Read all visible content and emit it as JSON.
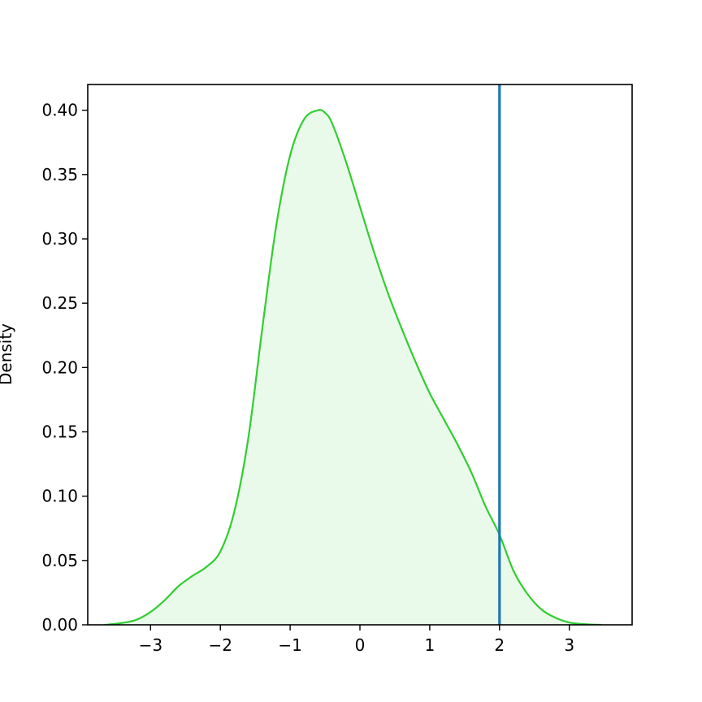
{
  "chart_data": {
    "type": "area",
    "title": "",
    "xlabel": "",
    "ylabel": "Density",
    "xlim": [
      -3.9,
      3.9
    ],
    "ylim": [
      0.0,
      0.42
    ],
    "x_ticks": [
      -3,
      -2,
      -1,
      0,
      1,
      2,
      3
    ],
    "x_tick_labels": [
      "−3",
      "−2",
      "−1",
      "0",
      "1",
      "2",
      "3"
    ],
    "y_ticks": [
      0.0,
      0.05,
      0.1,
      0.15,
      0.2,
      0.25,
      0.3,
      0.35,
      0.4
    ],
    "y_tick_labels": [
      "0.00",
      "0.05",
      "0.10",
      "0.15",
      "0.20",
      "0.25",
      "0.30",
      "0.35",
      "0.40"
    ],
    "grid": false,
    "legend": "none",
    "series": [
      {
        "kind": "density",
        "color": "#32cd32",
        "fill_color": "#32cd32",
        "fill_opacity": 0.1,
        "x": [
          -3.65,
          -3.4,
          -3.2,
          -3.0,
          -2.8,
          -2.6,
          -2.4,
          -2.2,
          -2.0,
          -1.8,
          -1.6,
          -1.4,
          -1.2,
          -1.0,
          -0.8,
          -0.6,
          -0.5,
          -0.4,
          -0.2,
          0.0,
          0.2,
          0.4,
          0.6,
          0.8,
          1.0,
          1.2,
          1.4,
          1.6,
          1.8,
          2.0,
          2.2,
          2.4,
          2.6,
          2.8,
          3.0,
          3.2,
          3.45
        ],
        "y": [
          0.0,
          0.0015,
          0.004,
          0.01,
          0.019,
          0.03,
          0.038,
          0.045,
          0.057,
          0.088,
          0.145,
          0.23,
          0.31,
          0.365,
          0.393,
          0.4,
          0.398,
          0.39,
          0.36,
          0.325,
          0.29,
          0.258,
          0.23,
          0.204,
          0.18,
          0.16,
          0.14,
          0.118,
          0.092,
          0.07,
          0.042,
          0.024,
          0.012,
          0.0055,
          0.0018,
          0.0006,
          0.0
        ]
      }
    ],
    "annotations": [
      {
        "type": "vline",
        "x": 2.0,
        "color": "#1f77b4"
      }
    ]
  }
}
